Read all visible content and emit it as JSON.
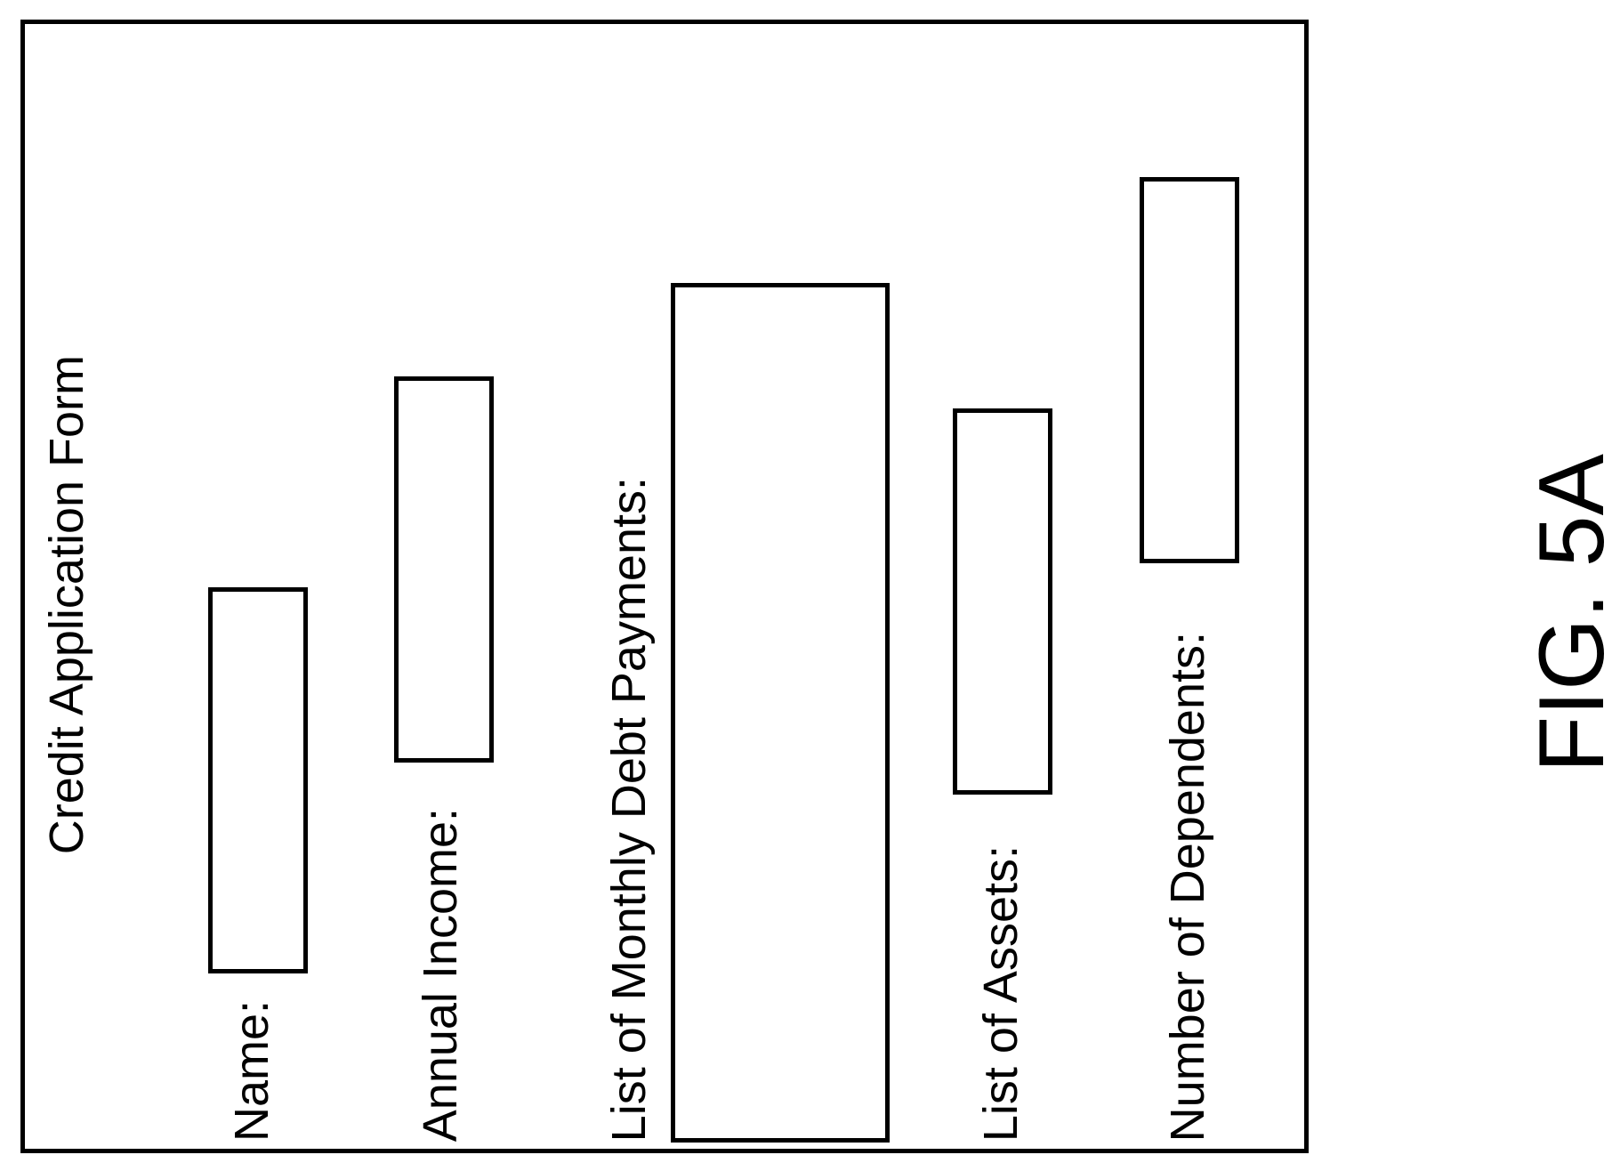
{
  "form": {
    "title": "Credit Application Form",
    "fields": [
      {
        "label": "Name:"
      },
      {
        "label": "Annual Income:"
      },
      {
        "label": "List of Monthly Debt Payments:"
      },
      {
        "label": "List of Assets:"
      },
      {
        "label": "Number of Dependents:"
      }
    ]
  },
  "figure": {
    "caption": "FIG. 5A"
  }
}
